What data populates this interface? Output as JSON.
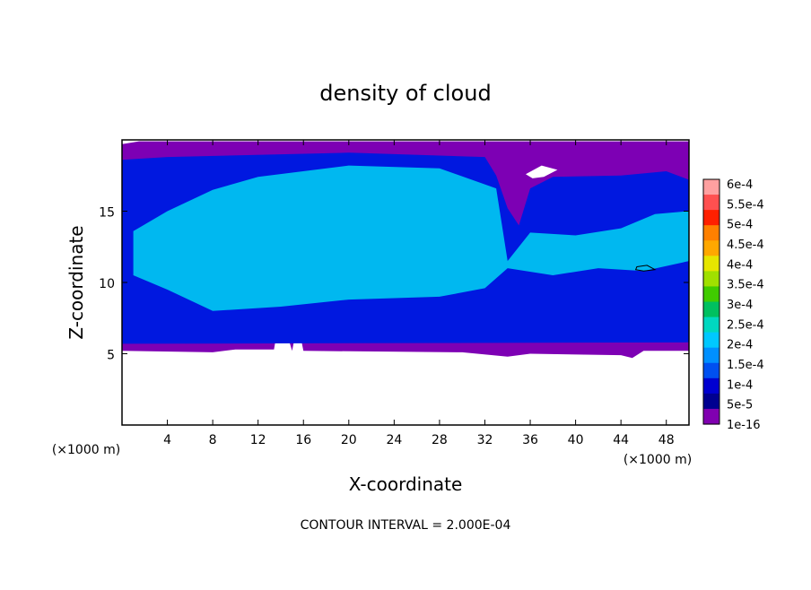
{
  "chart_data": {
    "type": "heatmap",
    "title": "density of cloud",
    "xlabel": "X-coordinate",
    "ylabel": "Z-coordinate",
    "x_unit": "(×1000 m)",
    "x_unit_right": "(×1000 m)",
    "xlim": [
      0,
      50
    ],
    "ylim": [
      0,
      20
    ],
    "x_ticks": [
      4,
      8,
      12,
      16,
      20,
      24,
      28,
      32,
      36,
      40,
      44,
      48
    ],
    "y_ticks": [
      5,
      10,
      15
    ],
    "footer": "CONTOUR INTERVAL = 2.000E-04",
    "colorbar": {
      "labels": [
        "6e-4",
        "5.5e-4",
        "5e-4",
        "4.5e-4",
        "4e-4",
        "3.5e-4",
        "3e-4",
        "2.5e-4",
        "2e-4",
        "1.5e-4",
        "1e-4",
        "5e-5",
        "1e-16"
      ],
      "colors": [
        "#ffa0a0",
        "#ff5050",
        "#ff2000",
        "#ff8000",
        "#ffa800",
        "#e6e600",
        "#a0e000",
        "#40cc00",
        "#00c060",
        "#00d8c0",
        "#00c8ff",
        "#0090ff",
        "#0050f0",
        "#0000d0",
        "#000090",
        "#8000b0"
      ]
    },
    "bands": {
      "cloud_top": [
        [
          0,
          19.7
        ],
        [
          1.5,
          19.9
        ],
        [
          3,
          19.9
        ],
        [
          50,
          19.9
        ]
      ],
      "cloud_base": [
        [
          0,
          5.2
        ],
        [
          8,
          5.1
        ],
        [
          10,
          5.3
        ],
        [
          13.4,
          5.3
        ],
        [
          13.8,
          7.1
        ],
        [
          14.4,
          6.8
        ],
        [
          15,
          5.2
        ],
        [
          15.5,
          7.2
        ],
        [
          16,
          5.2
        ],
        [
          30,
          5.1
        ],
        [
          34,
          4.8
        ],
        [
          36,
          5.0
        ],
        [
          44,
          4.9
        ],
        [
          45,
          4.7
        ],
        [
          46,
          5.2
        ],
        [
          50,
          5.2
        ]
      ],
      "blue_top": [
        [
          0,
          18.6
        ],
        [
          4,
          18.8
        ],
        [
          20,
          19.1
        ],
        [
          32,
          18.8
        ],
        [
          33,
          17.5
        ],
        [
          34,
          15.2
        ],
        [
          35,
          14.0
        ],
        [
          36,
          16.6
        ],
        [
          38,
          17.4
        ],
        [
          44,
          17.5
        ],
        [
          48,
          17.8
        ],
        [
          50,
          17.2
        ]
      ],
      "blue_base": [
        [
          0,
          5.7
        ],
        [
          50,
          5.8
        ]
      ],
      "core_top": [
        [
          1,
          13.6
        ],
        [
          4,
          15.0
        ],
        [
          8,
          16.5
        ],
        [
          12,
          17.4
        ],
        [
          20,
          18.2
        ],
        [
          28,
          18.0
        ],
        [
          33,
          16.6
        ],
        [
          34,
          11.5
        ],
        [
          36,
          13.5
        ],
        [
          40,
          13.3
        ],
        [
          44,
          13.8
        ],
        [
          47,
          14.8
        ],
        [
          50,
          15.0
        ]
      ],
      "core_base": [
        [
          1,
          10.5
        ],
        [
          4,
          9.5
        ],
        [
          8,
          8.0
        ],
        [
          14,
          8.3
        ],
        [
          20,
          8.8
        ],
        [
          28,
          9.0
        ],
        [
          32,
          9.6
        ],
        [
          34,
          11.0
        ],
        [
          38,
          10.5
        ],
        [
          42,
          11.0
        ],
        [
          46,
          10.8
        ],
        [
          50,
          11.5
        ]
      ]
    },
    "holes": [
      [
        [
          35.6,
          17.6
        ],
        [
          37.0,
          18.2
        ],
        [
          38.4,
          17.9
        ],
        [
          37.2,
          17.4
        ],
        [
          36.2,
          17.3
        ]
      ]
    ],
    "contours": [
      [
        [
          45.4,
          11.1
        ],
        [
          46.3,
          11.2
        ],
        [
          47.0,
          10.9
        ],
        [
          46.0,
          10.8
        ],
        [
          45.3,
          10.9
        ]
      ]
    ]
  }
}
